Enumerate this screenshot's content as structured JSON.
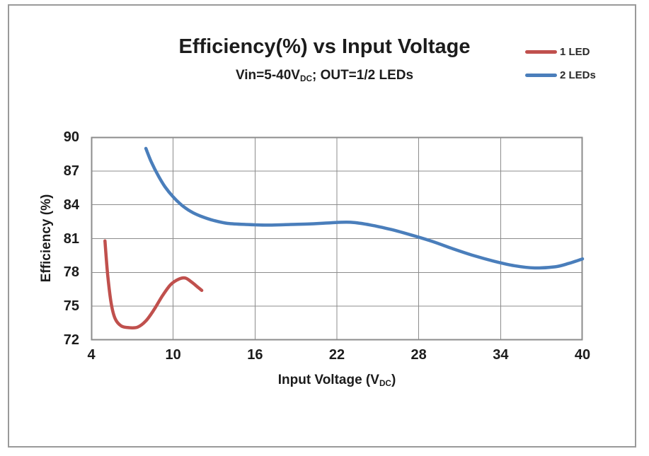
{
  "window": {
    "background": "#FFFFFF",
    "border_color": "#9A9A9A"
  },
  "chart_data": {
    "type": "line",
    "title": "Efficiency(%) vs Input Voltage",
    "subtitle": "Vin=5-40VDC; OUT=1/2 LEDs",
    "subtitle_parts": {
      "pre": "Vin=5-40V",
      "sub": "DC",
      "post": "; OUT=1/2 LEDs"
    },
    "xlabel": "Input Voltage (VDC)",
    "xlabel_parts": {
      "pre": "Input Voltage (V",
      "sub": "DC",
      "post": ")"
    },
    "ylabel": "Efficiency (%)",
    "xlim": [
      4,
      40
    ],
    "ylim": [
      72,
      90
    ],
    "xticks": [
      4,
      10,
      16,
      22,
      28,
      34,
      40
    ],
    "yticks": [
      72,
      75,
      78,
      81,
      84,
      87,
      90
    ],
    "grid": true,
    "legend_position": "top-right",
    "text_color": "#1C1C1C",
    "grid_color": "#8C8C8C",
    "series": [
      {
        "name": "1 LED",
        "color": "#C0504D",
        "points": [
          [
            5.0,
            80.8
          ],
          [
            5.2,
            77.8
          ],
          [
            5.45,
            75.3
          ],
          [
            5.75,
            73.9
          ],
          [
            6.2,
            73.25
          ],
          [
            6.8,
            73.1
          ],
          [
            7.4,
            73.15
          ],
          [
            8.0,
            73.7
          ],
          [
            8.6,
            74.7
          ],
          [
            9.2,
            75.9
          ],
          [
            9.8,
            76.9
          ],
          [
            10.4,
            77.4
          ],
          [
            10.9,
            77.5
          ],
          [
            11.4,
            77.1
          ],
          [
            11.8,
            76.7
          ],
          [
            12.1,
            76.4
          ]
        ]
      },
      {
        "name": "2 LEDs",
        "color": "#4A7EBB",
        "points": [
          [
            8.0,
            89.0
          ],
          [
            8.4,
            87.8
          ],
          [
            8.9,
            86.6
          ],
          [
            9.4,
            85.6
          ],
          [
            10.0,
            84.7
          ],
          [
            10.6,
            84.0
          ],
          [
            11.3,
            83.4
          ],
          [
            12.0,
            83.0
          ],
          [
            13.0,
            82.6
          ],
          [
            14.0,
            82.35
          ],
          [
            15.5,
            82.25
          ],
          [
            17.0,
            82.2
          ],
          [
            18.5,
            82.25
          ],
          [
            20.0,
            82.3
          ],
          [
            21.5,
            82.4
          ],
          [
            23.0,
            82.45
          ],
          [
            24.5,
            82.2
          ],
          [
            26.0,
            81.8
          ],
          [
            27.5,
            81.3
          ],
          [
            29.0,
            80.75
          ],
          [
            30.5,
            80.1
          ],
          [
            32.0,
            79.5
          ],
          [
            33.5,
            79.0
          ],
          [
            35.0,
            78.6
          ],
          [
            36.5,
            78.4
          ],
          [
            38.0,
            78.5
          ],
          [
            39.0,
            78.8
          ],
          [
            40.0,
            79.2
          ]
        ]
      }
    ]
  }
}
